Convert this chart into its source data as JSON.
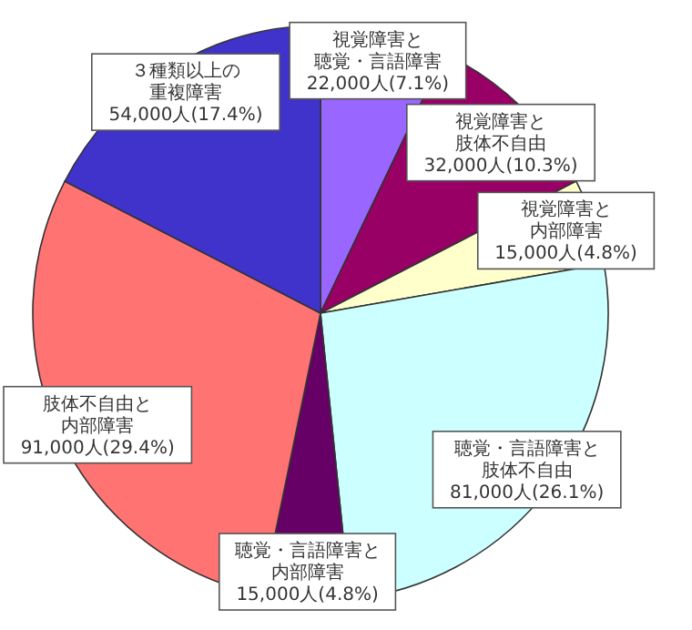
{
  "chart_data": {
    "type": "pie",
    "categories": [
      "視覚障害と聴覚・言語障害",
      "視覚障害と肢体不自由",
      "視覚障害と内部障害",
      "聴覚・言語障害と肢体不自由",
      "聴覚・言語障害と内部障害",
      "肢体不自由と内部障害",
      "３種類以上の重複障害"
    ],
    "values": [
      22000,
      32000,
      15000,
      81000,
      15000,
      91000,
      54000
    ],
    "value_labels": [
      "22,000人(7.1%)",
      "32,000人(10.3%)",
      "15,000人(4.8%)",
      "81,000人(26.1%)",
      "15,000人(4.8%)",
      "91,000人(29.4%)",
      "54,000人(17.4%)"
    ],
    "colors": [
      "#9966ff",
      "#990066",
      "#ffffcc",
      "#ccffff",
      "#660066",
      "#ff7373",
      "#3f33cc"
    ]
  }
}
